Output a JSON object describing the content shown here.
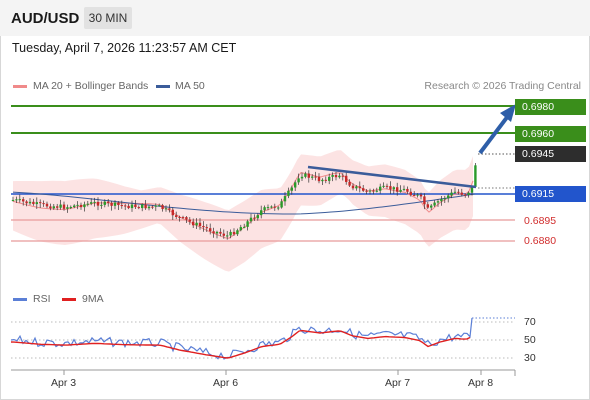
{
  "header": {
    "symbol": "AUD/USD",
    "timeframe": "30 MIN"
  },
  "datetime": "Tuesday, April 7, 2026 11:23:57 AM CET",
  "legend": {
    "bollinger": "MA 20 + Bollinger Bands",
    "ma50": "MA 50",
    "copyright": "Research © 2026 Trading Central"
  },
  "price_levels": {
    "r2": "0.6980",
    "r1": "0.6960",
    "current": "0.6945",
    "pivot": "0.6915",
    "s1": "0.6895",
    "s2": "0.6880"
  },
  "rsi_legend": {
    "rsi": "RSI",
    "ma": "9MA"
  },
  "rsi_ticks": [
    "70",
    "50",
    "30"
  ],
  "date_ticks": [
    "Apr 3",
    "Apr 6",
    "Apr 7",
    "Apr 8"
  ],
  "colors": {
    "resistance": "#3a8e1b",
    "pivot": "#2255cc",
    "support": "#e89a9a",
    "ma50": "#3b5c9a",
    "bollinger": "#f08a8a",
    "rsi": "#5b7fd6",
    "rsi_ma": "#e02020"
  }
}
